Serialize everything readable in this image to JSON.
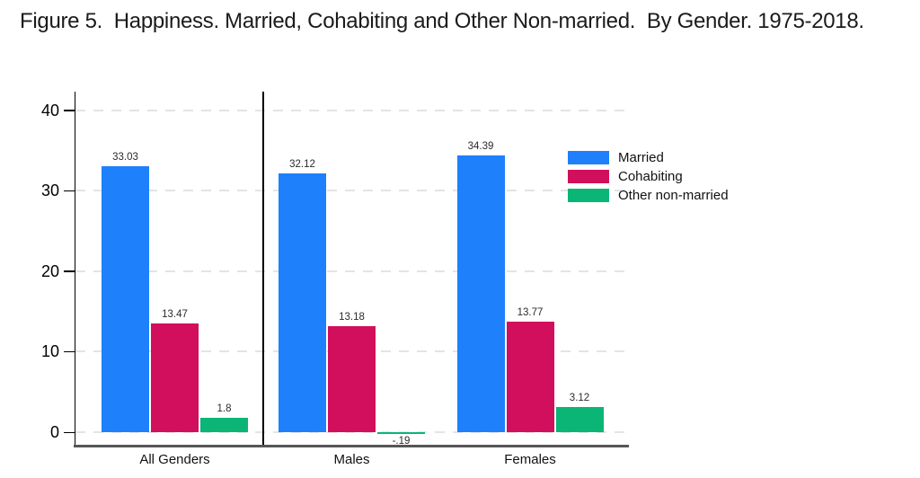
{
  "title": "Figure 5.  Happiness. Married, Cohabiting and Other Non-married.  By Gender. 1975-2018.",
  "chart_data": {
    "type": "bar",
    "title": "Figure 5.  Happiness. Married, Cohabiting and Other Non-married.  By Gender. 1975-2018.",
    "categories": [
      "All Genders",
      "Males",
      "Females"
    ],
    "series": [
      {
        "name": "Married",
        "color": "#1E80FB",
        "values": [
          33.03,
          32.12,
          34.39
        ],
        "labels": [
          "33.03",
          "32.12",
          "34.39"
        ]
      },
      {
        "name": "Cohabiting",
        "color": "#D20F5C",
        "values": [
          13.47,
          13.18,
          13.77
        ],
        "labels": [
          "13.47",
          "13.18",
          "13.77"
        ]
      },
      {
        "name": "Other non-married",
        "color": "#0BB576",
        "values": [
          1.8,
          -0.19,
          3.12
        ],
        "labels": [
          "1.8",
          "-.19",
          "3.12"
        ]
      }
    ],
    "xlabel": "",
    "ylabel": "",
    "y_ticks": [
      0,
      10,
      20,
      30,
      40
    ],
    "ylim": [
      -1.7,
      42.3
    ],
    "grid": "horizontal-dashed",
    "legend": {
      "position": "inside-top-right",
      "entries": [
        "Married",
        "Cohabiting",
        "Other non-married"
      ]
    },
    "separator_between": [
      "All Genders",
      "Males"
    ]
  }
}
